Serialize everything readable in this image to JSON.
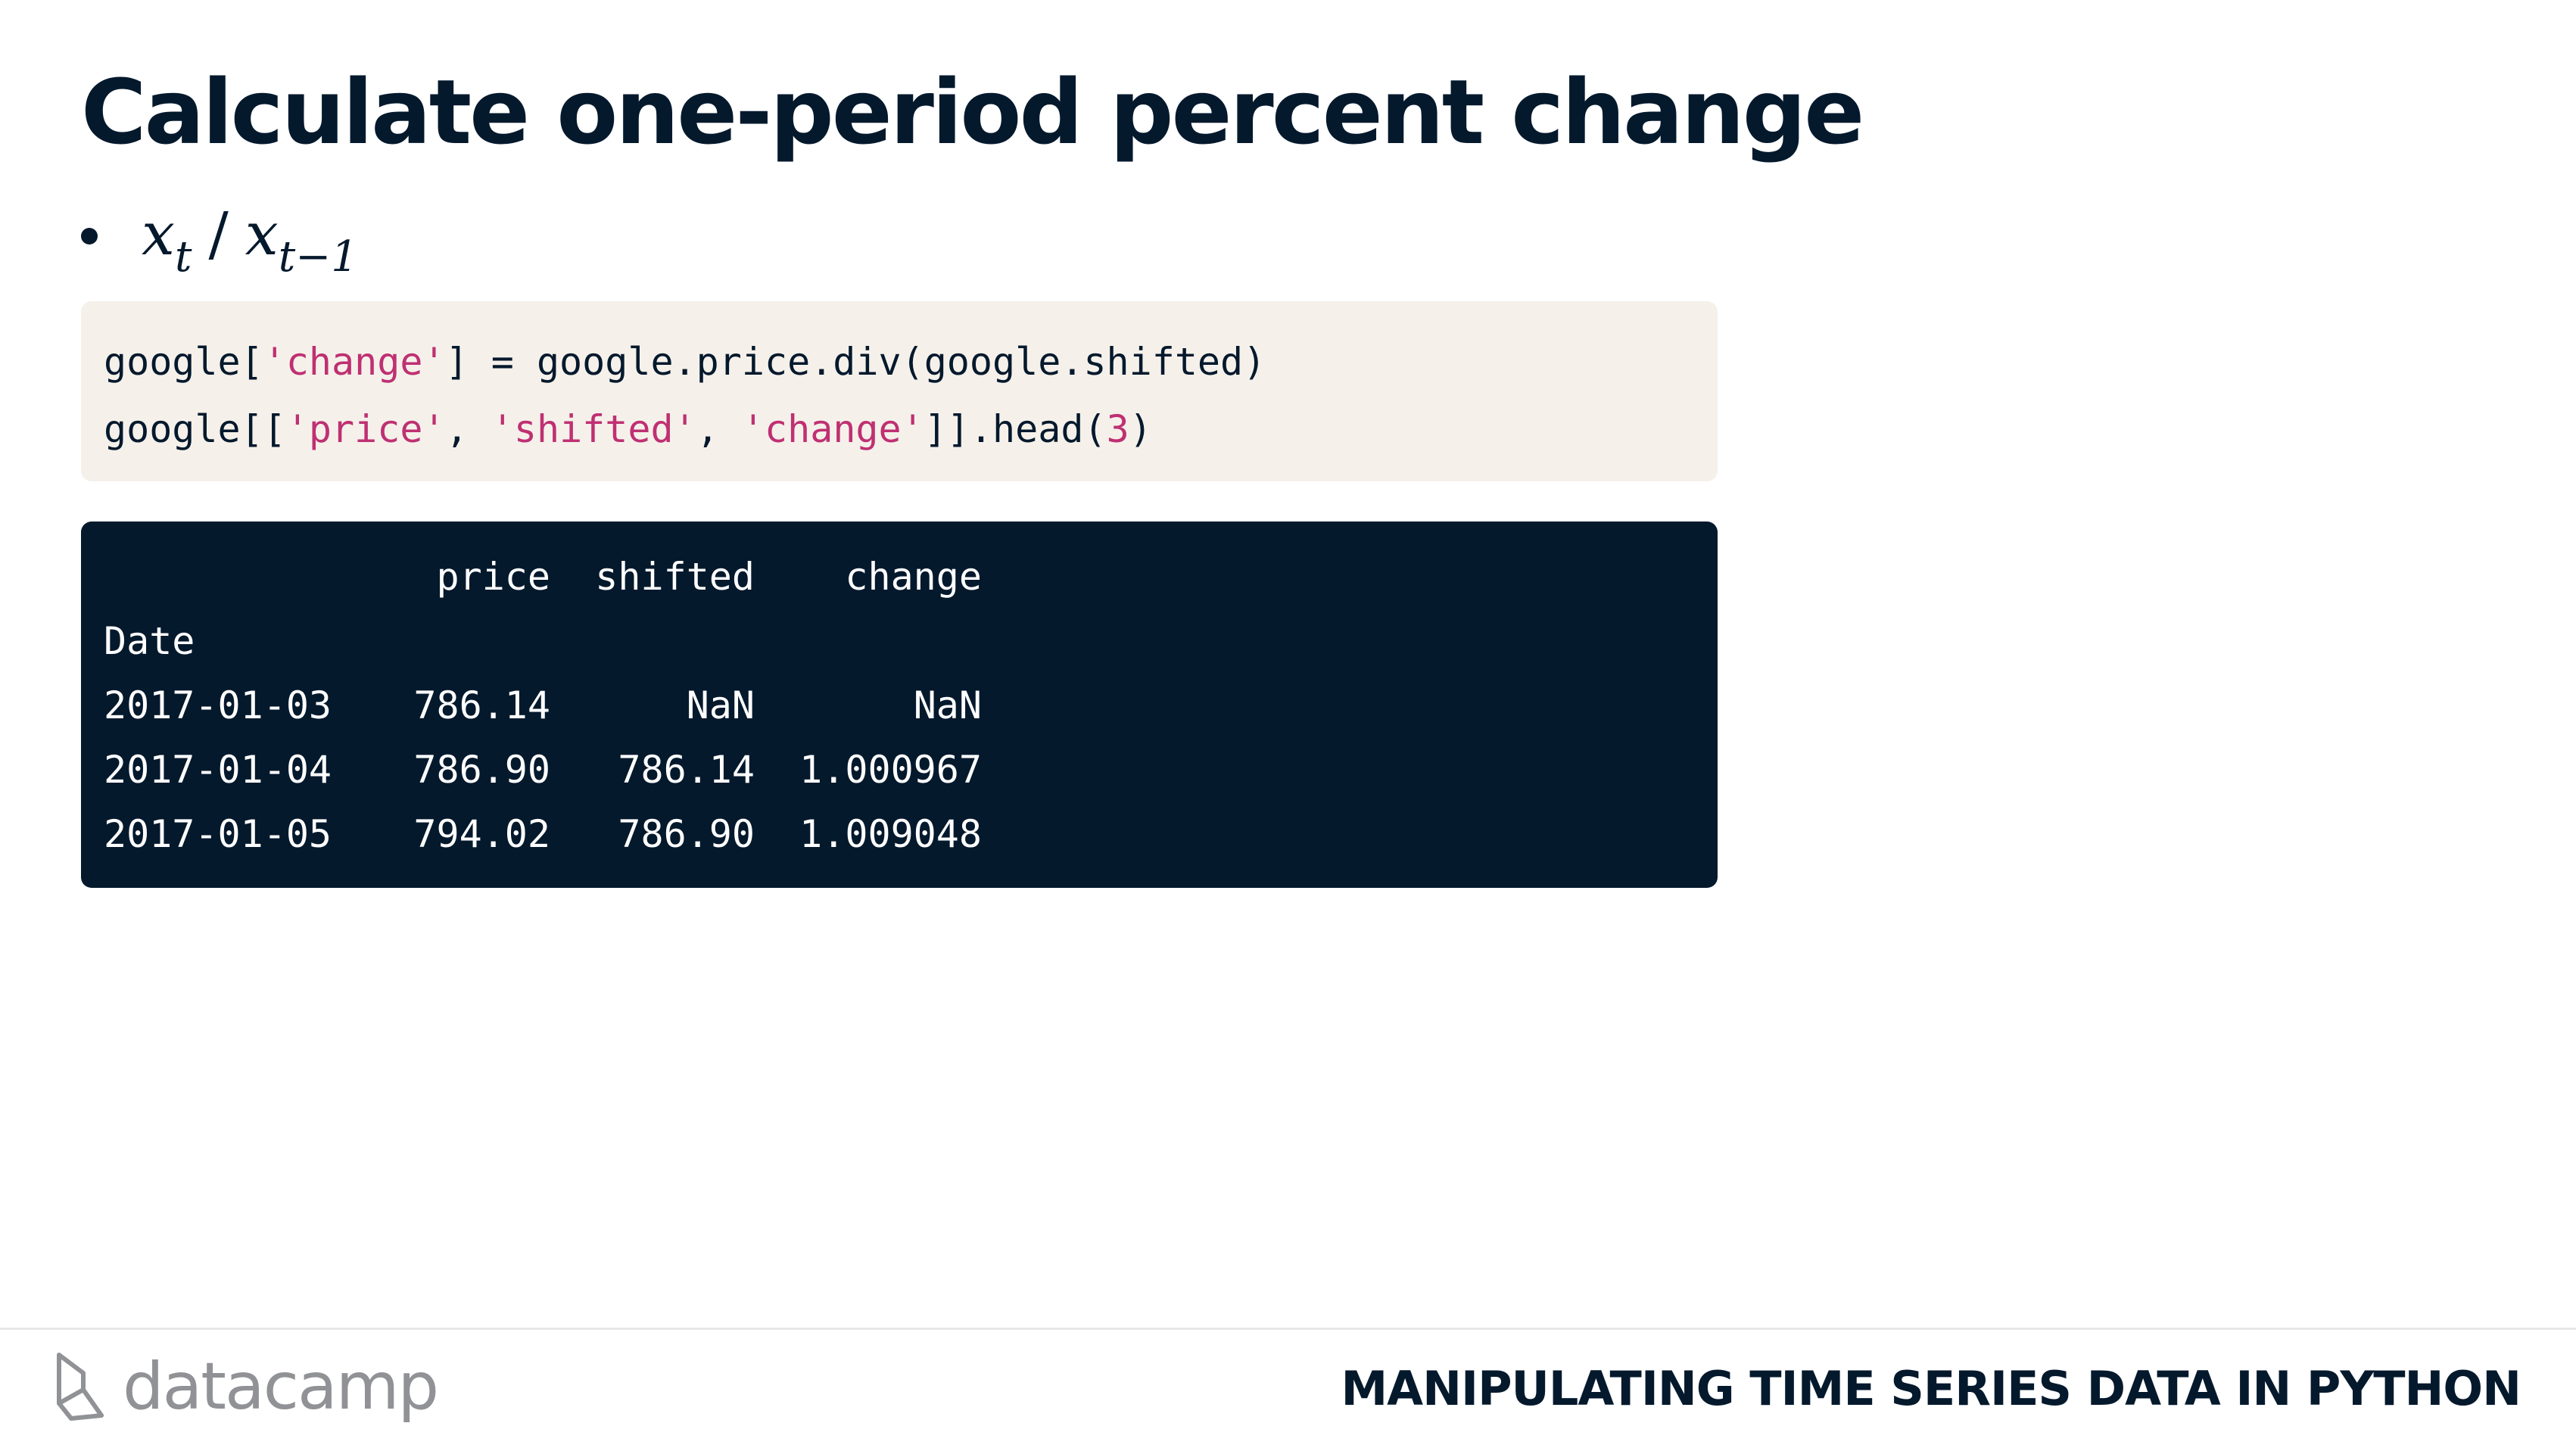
{
  "slide": {
    "title": "Calculate one-period percent change"
  },
  "bullet": {
    "x_t": "x",
    "t_sub": "t",
    "slash": "/",
    "x_t1": "x",
    "t1_sub": "t−1"
  },
  "code": {
    "line1": {
      "a": "google[",
      "s1": "'change'",
      "b": "] = google.price.div(google.shifted)"
    },
    "line2": {
      "a": "google[[",
      "s1": "'price'",
      "b": ", ",
      "s2": "'shifted'",
      "c": ", ",
      "s3": "'change'",
      "d": "]].head(",
      "n": "3",
      "e": ")"
    }
  },
  "output": {
    "columns": [
      "price",
      "shifted",
      "change"
    ],
    "index_name": "Date",
    "rows": [
      {
        "date": "2017-01-03",
        "price": "786.14",
        "shifted": "NaN",
        "change": "NaN"
      },
      {
        "date": "2017-01-04",
        "price": "786.90",
        "shifted": "786.14",
        "change": "1.000967"
      },
      {
        "date": "2017-01-05",
        "price": "794.02",
        "shifted": "786.90",
        "change": "1.009048"
      }
    ]
  },
  "footer": {
    "logo_text": "datacamp",
    "course_title": "MANIPULATING TIME SERIES DATA IN PYTHON"
  },
  "colors": {
    "navy": "#05192d",
    "code_bg": "#f5f1ea",
    "string": "#bf3072",
    "logo_gray": "#919296"
  }
}
